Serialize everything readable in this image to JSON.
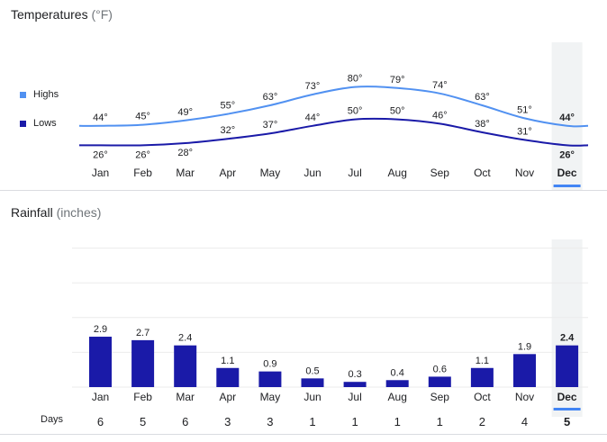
{
  "temperatures": {
    "title": "Temperatures",
    "unit": "(°F)",
    "legend": {
      "highs": "Highs",
      "lows": "Lows"
    },
    "colors": {
      "highs": "#5191f1",
      "lows": "#1a1aa8"
    }
  },
  "rainfall": {
    "title": "Rainfall",
    "unit": "(inches)",
    "color": "#1a1aa8"
  },
  "days": {
    "label": "Days"
  },
  "selected_month": "Dec",
  "accent_color": "#4285f4",
  "chart_data": [
    {
      "type": "line",
      "title": "Temperatures (°F)",
      "categories": [
        "Jan",
        "Feb",
        "Mar",
        "Apr",
        "May",
        "Jun",
        "Jul",
        "Aug",
        "Sep",
        "Oct",
        "Nov",
        "Dec"
      ],
      "series": [
        {
          "name": "Highs",
          "values": [
            44,
            45,
            49,
            55,
            63,
            73,
            80,
            79,
            74,
            63,
            51,
            44
          ]
        },
        {
          "name": "Lows",
          "values": [
            26,
            26,
            28,
            32,
            37,
            44,
            50,
            50,
            46,
            38,
            31,
            26
          ]
        }
      ],
      "high_labels": [
        "44°",
        "45°",
        "49°",
        "55°",
        "63°",
        "73°",
        "80°",
        "79°",
        "74°",
        "63°",
        "51°",
        "44°"
      ],
      "low_labels": [
        "26°",
        "26°",
        "28°",
        "32°",
        "37°",
        "44°",
        "50°",
        "50°",
        "46°",
        "38°",
        "31°",
        "26°"
      ],
      "legend": "left"
    },
    {
      "type": "bar",
      "title": "Rainfall (inches)",
      "categories": [
        "Jan",
        "Feb",
        "Mar",
        "Apr",
        "May",
        "Jun",
        "Jul",
        "Aug",
        "Sep",
        "Oct",
        "Nov",
        "Dec"
      ],
      "values": [
        2.9,
        2.7,
        2.4,
        1.1,
        0.9,
        0.5,
        0.3,
        0.4,
        0.6,
        1.1,
        1.9,
        2.4
      ],
      "value_labels": [
        "2.9",
        "2.7",
        "2.4",
        "1.1",
        "0.9",
        "0.5",
        "0.3",
        "0.4",
        "0.6",
        "1.1",
        "1.9",
        "2.4"
      ],
      "ylim": [
        0,
        10
      ],
      "grid": true
    },
    {
      "type": "table",
      "title": "Days",
      "categories": [
        "Jan",
        "Feb",
        "Mar",
        "Apr",
        "May",
        "Jun",
        "Jul",
        "Aug",
        "Sep",
        "Oct",
        "Nov",
        "Dec"
      ],
      "values": [
        6,
        5,
        6,
        3,
        3,
        1,
        1,
        1,
        1,
        2,
        4,
        5
      ]
    }
  ]
}
